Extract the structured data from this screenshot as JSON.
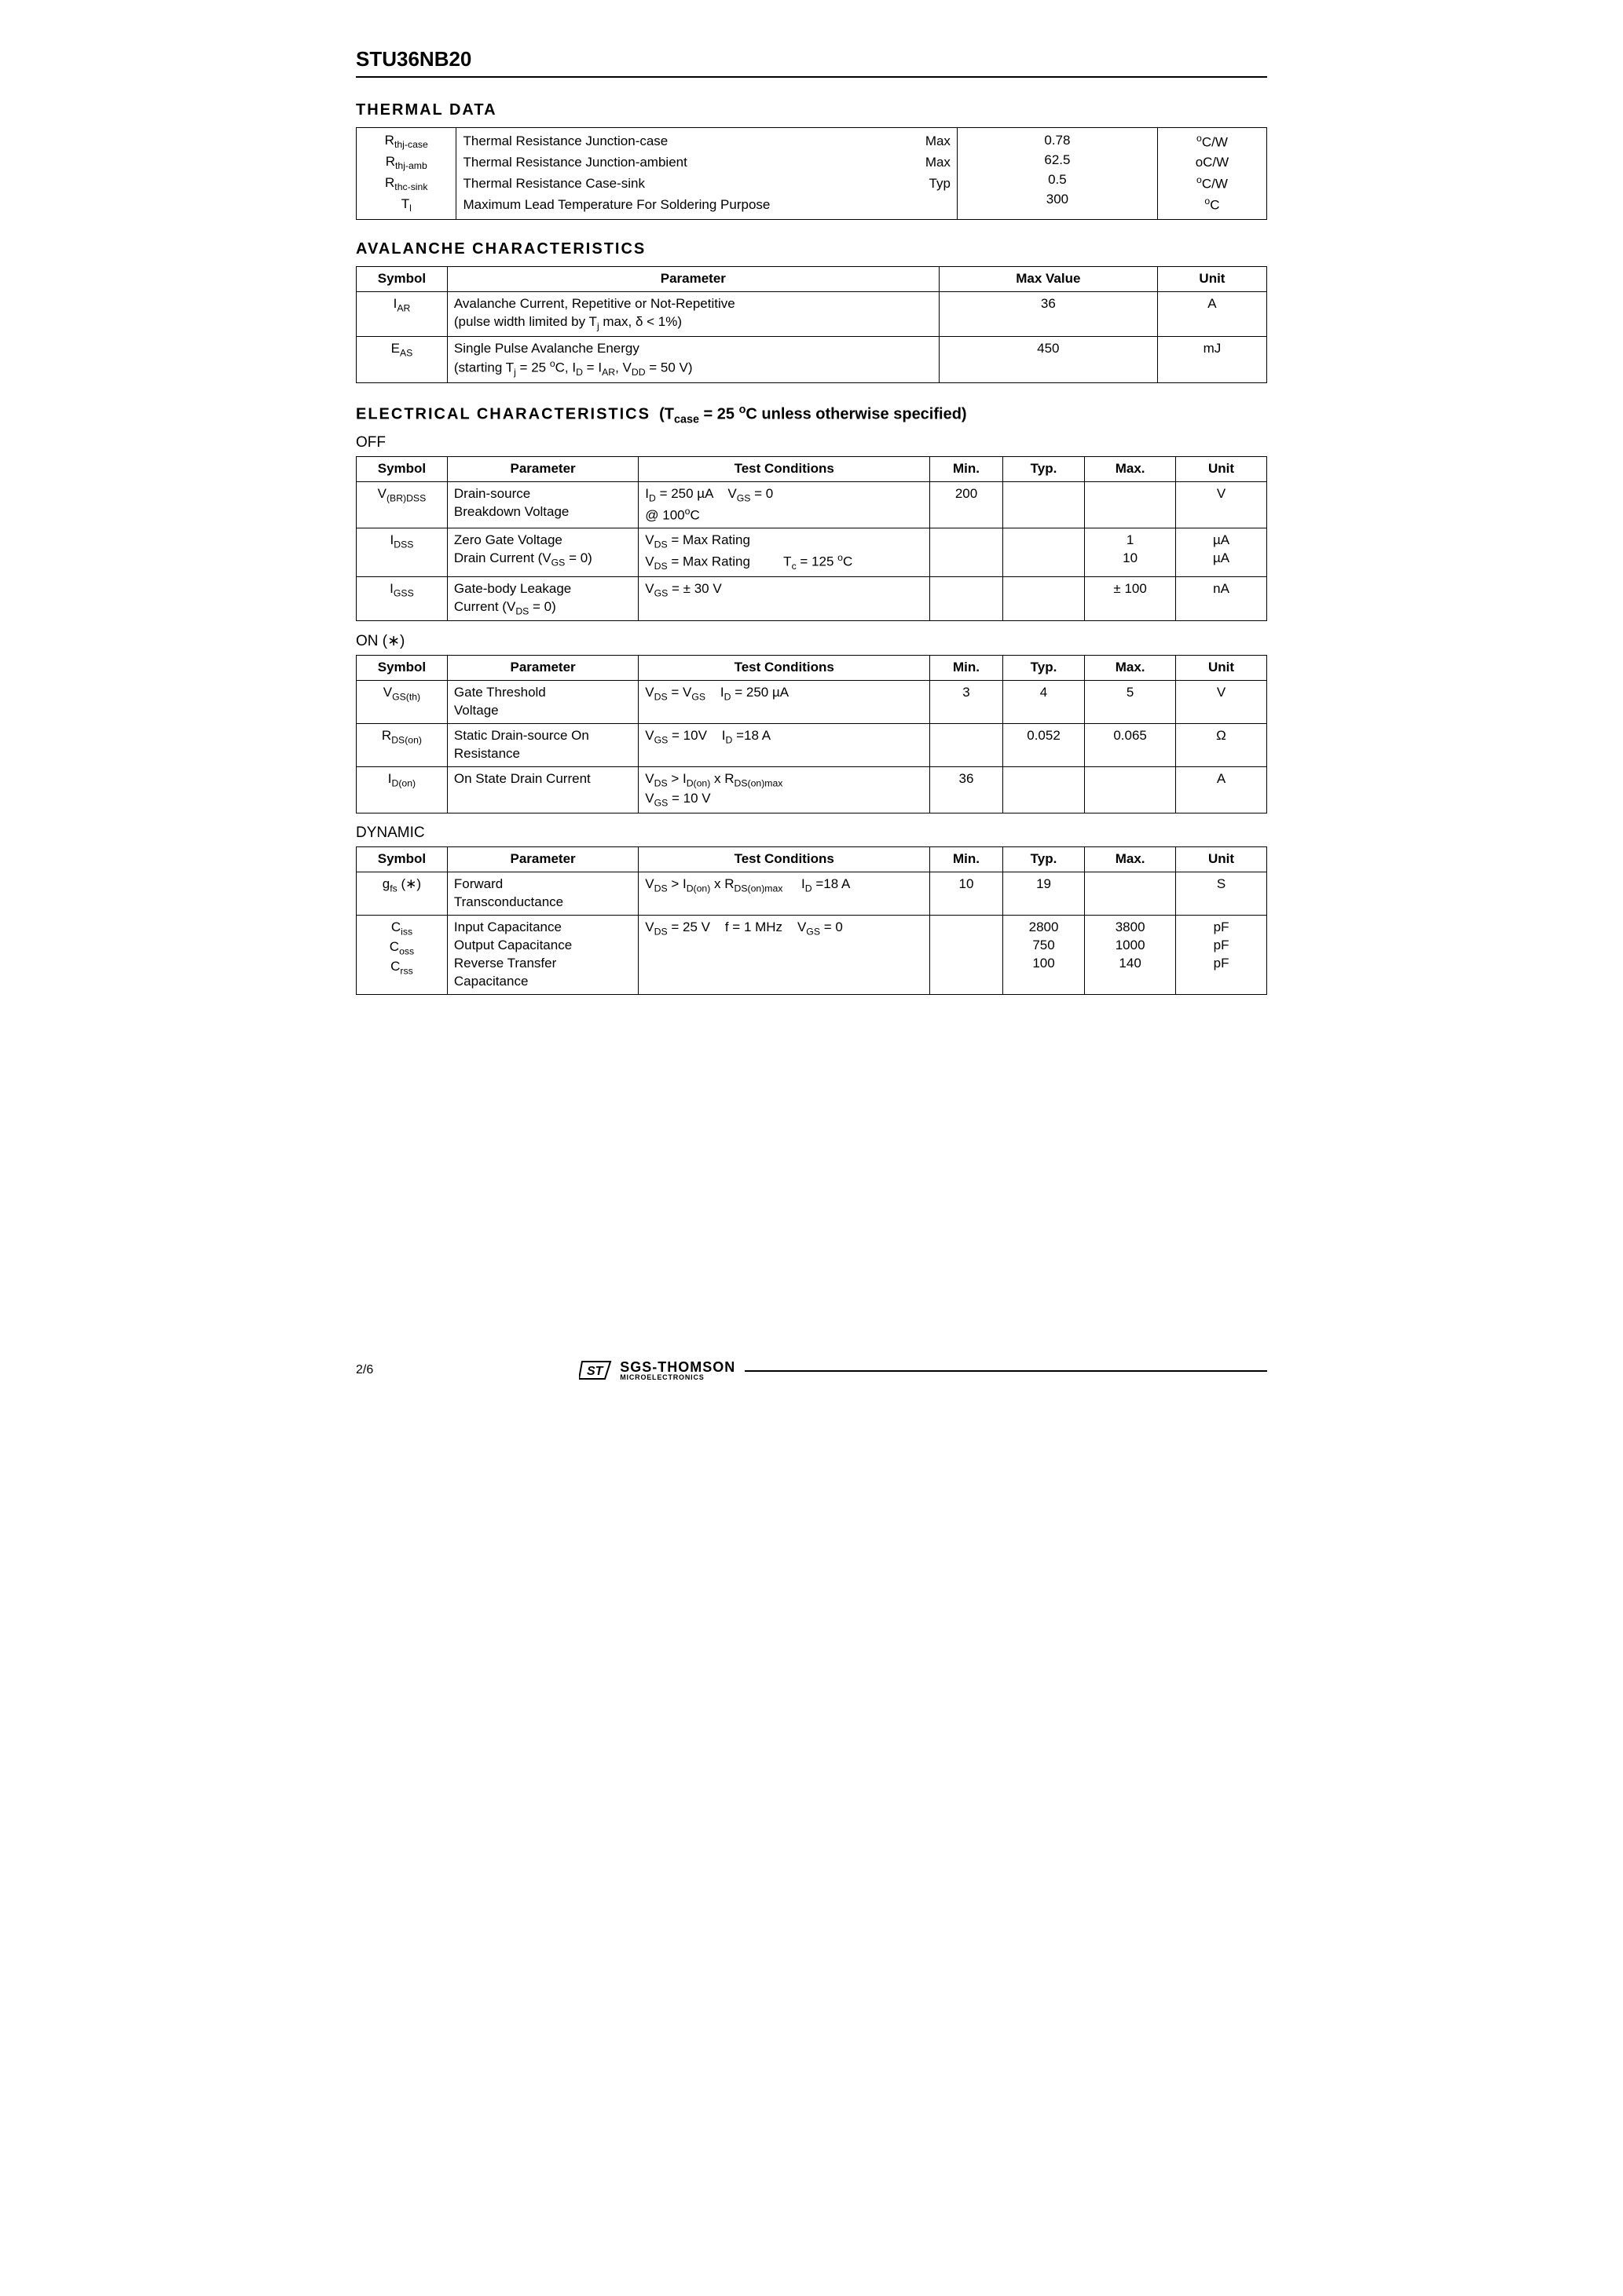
{
  "meta": {
    "part_number": "STU36NB20",
    "page_label": "2/6",
    "logo_brand": "SGS-THOMSON",
    "logo_tag": "MICROELECTRONICS"
  },
  "thermal": {
    "title": "THERMAL  DATA",
    "rows": [
      {
        "sym_html": "R<span class='sub'>thj-case</span>",
        "desc": "Thermal  Resistance  Junction-case",
        "kind": "Max",
        "val": "0.78",
        "unit_html": "<span class='sup'>o</span>C/W"
      },
      {
        "sym_html": "R<span class='sub'>thj-amb</span>",
        "desc": "Thermal  Resistance  Junction-ambient",
        "kind": "Max",
        "val": "62.5",
        "unit_html": "oC/W"
      },
      {
        "sym_html": "R<span class='sub'>thc-sink</span>",
        "desc": "Thermal  Resistance  Case-sink",
        "kind": "Typ",
        "val": "0.5",
        "unit_html": "<span class='sup'>o</span>C/W"
      },
      {
        "sym_html": "T<span class='sub'>l</span>",
        "desc": "Maximum Lead Temperature For Soldering Purpose",
        "kind": "",
        "val": "300",
        "unit_html": "<span class='sup'>o</span>C"
      }
    ]
  },
  "avalanche": {
    "title": "AVALANCHE  CHARACTERISTICS",
    "headers": {
      "sym": "Symbol",
      "param": "Parameter",
      "max": "Max  Value",
      "unit": "Unit"
    },
    "rows": [
      {
        "sym_html": "I<span class='sub'>AR</span>",
        "param_html": "Avalanche Current, Repetitive or Not-Repetitive<br>(pulse width limited by T<span class='sub'>j</span> max, δ &lt; 1%)",
        "max": "36",
        "unit": "A"
      },
      {
        "sym_html": "E<span class='sub'>AS</span>",
        "param_html": "Single Pulse Avalanche Energy<br>(starting T<span class='sub'>j</span> = 25 <span class='sup'>o</span>C, I<span class='sub'>D</span> = I<span class='sub'>AR</span>, V<span class='sub'>DD</span> = 50 V)",
        "max": "450",
        "unit": "mJ"
      }
    ]
  },
  "electrical": {
    "title_html": "<b style='letter-spacing:2px'>ELECTRICAL  CHARACTERISTICS</b>&nbsp;&nbsp;(T<span class='sub'>case</span> = 25 <span class='sup'>o</span>C unless otherwise specified)",
    "headers": {
      "sym": "Symbol",
      "param": "Parameter",
      "cond": "Test Conditions",
      "min": "Min.",
      "typ": "Typ.",
      "max": "Max.",
      "unit": "Unit"
    },
    "groups": [
      {
        "label": "OFF",
        "rows": [
          {
            "sym_html": "V<span class='sub'>(BR)DSS</span>",
            "param_html": "Drain-source<br>Breakdown Voltage",
            "cond_html": "I<span class='sub'>D</span> = 250 µA &nbsp;&nbsp; V<span class='sub'>GS</span> = 0<br>@ 100<span class='sup'>o</span>C",
            "min": "200",
            "typ": "",
            "max": "",
            "unit": "V"
          },
          {
            "sym_html": "I<span class='sub'>DSS</span>",
            "param_html": "Zero Gate Voltage<br>Drain Current (V<span class='sub'>GS</span> = 0)",
            "cond_html": "V<span class='sub'>DS</span> = Max Rating<br>V<span class='sub'>DS</span> = Max Rating &nbsp;&nbsp;&nbsp;&nbsp;&nbsp;&nbsp;&nbsp; T<span class='sub'>c</span> = 125 <span class='sup'>o</span>C",
            "min": "",
            "typ": "",
            "max": "1<br>10",
            "unit": "µA<br>µA"
          },
          {
            "sym_html": "I<span class='sub'>GSS</span>",
            "param_html": "Gate-body Leakage<br>Current (V<span class='sub'>DS</span> = 0)",
            "cond_html": "V<span class='sub'>GS</span> = ± 30 V",
            "min": "",
            "typ": "",
            "max": "± 100",
            "unit": "nA"
          }
        ]
      },
      {
        "label": "ON (∗)",
        "rows": [
          {
            "sym_html": "V<span class='sub'>GS(th)</span>",
            "param_html": "Gate Threshold<br>Voltage",
            "cond_html": "V<span class='sub'>DS</span> = V<span class='sub'>GS</span> &nbsp;&nbsp; I<span class='sub'>D</span> = 250 µA",
            "min": "3",
            "typ": "4",
            "max": "5",
            "unit": "V"
          },
          {
            "sym_html": "R<span class='sub'>DS(on)</span>",
            "param_html": "Static Drain-source On<br>Resistance",
            "cond_html": "V<span class='sub'>GS</span> = 10V &nbsp;&nbsp; I<span class='sub'>D</span> =18 A",
            "min": "",
            "typ": "0.052",
            "max": "0.065",
            "unit": "Ω"
          },
          {
            "sym_html": "I<span class='sub'>D(on)</span>",
            "param_html": "On State Drain Current",
            "cond_html": "V<span class='sub'>DS</span> &gt; I<span class='sub'>D(on)</span> x R<span class='sub'>DS(on)max</span><br>V<span class='sub'>GS</span> = 10 V",
            "min": "36",
            "typ": "",
            "max": "",
            "unit": "A"
          }
        ]
      },
      {
        "label": "DYNAMIC",
        "rows": [
          {
            "sym_html": "g<span class='sub'>fs</span> (∗)",
            "param_html": "Forward<br>Transconductance",
            "cond_html": "V<span class='sub'>DS</span> &gt; I<span class='sub'>D(on)</span> x R<span class='sub'>DS(on)max</span> &nbsp;&nbsp;&nbsp; I<span class='sub'>D</span> =18 A",
            "min": "10",
            "typ": "19",
            "max": "",
            "unit": "S"
          },
          {
            "sym_html": "C<span class='sub'>iss</span><br>C<span class='sub'>oss</span><br>C<span class='sub'>rss</span>",
            "param_html": "Input Capacitance<br>Output Capacitance<br>Reverse Transfer<br>Capacitance",
            "cond_html": "V<span class='sub'>DS</span> = 25 V &nbsp;&nbsp; f = 1 MHz &nbsp;&nbsp; V<span class='sub'>GS</span> = 0",
            "min": "",
            "typ": "2800<br>750<br>100",
            "max": "3800<br>1000<br>140",
            "unit": "pF<br>pF<br>pF"
          }
        ]
      }
    ]
  },
  "style": {
    "colors": {
      "text": "#000000",
      "background": "#ffffff",
      "rule": "#000000"
    },
    "fonts": {
      "family": "Arial, Helvetica, sans-serif",
      "body_pt": 13,
      "title_pt": 15,
      "part_pt": 20
    }
  }
}
